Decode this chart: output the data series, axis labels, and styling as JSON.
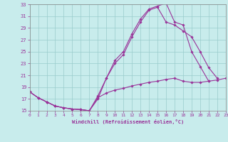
{
  "title": "Windchill (Refroidissement éolien,°C)",
  "bg_color": "#c8ecec",
  "line_color": "#993399",
  "grid_color": "#99cccc",
  "xlim": [
    0,
    23
  ],
  "ylim": [
    15,
    33
  ],
  "yticks": [
    15,
    17,
    19,
    21,
    23,
    25,
    27,
    29,
    31,
    33
  ],
  "xticks": [
    0,
    1,
    2,
    3,
    4,
    5,
    6,
    7,
    8,
    9,
    10,
    11,
    12,
    13,
    14,
    15,
    16,
    17,
    18,
    19,
    20,
    21,
    22,
    23
  ],
  "curve1_x": [
    0,
    1,
    2,
    3,
    4,
    5,
    6,
    7,
    8,
    9,
    10,
    11,
    12,
    13,
    14,
    15,
    16,
    17,
    18,
    19,
    20,
    21
  ],
  "curve1_y": [
    18.2,
    17.2,
    16.5,
    15.8,
    15.5,
    15.3,
    15.2,
    15.0,
    17.0,
    20.5,
    23.5,
    25.0,
    28.0,
    30.5,
    32.2,
    32.7,
    33.2,
    30.0,
    29.5,
    25.0,
    22.5,
    20.0
  ],
  "curve2_x": [
    0,
    1,
    2,
    3,
    4,
    5,
    6,
    7,
    8,
    9,
    10,
    11,
    12,
    13,
    14,
    15,
    16,
    17,
    18,
    19,
    20,
    21,
    22
  ],
  "curve2_y": [
    18.2,
    17.2,
    16.5,
    15.8,
    15.5,
    15.3,
    15.2,
    15.0,
    17.5,
    20.5,
    23.0,
    24.5,
    27.5,
    30.0,
    32.0,
    32.5,
    30.0,
    29.5,
    28.5,
    27.5,
    25.0,
    22.3,
    20.5
  ],
  "curve3_x": [
    0,
    1,
    2,
    3,
    4,
    5,
    6,
    7,
    8,
    9,
    10,
    11,
    12,
    13,
    14,
    15,
    16,
    17,
    18,
    19,
    20,
    21,
    22,
    23
  ],
  "curve3_y": [
    18.2,
    17.2,
    16.5,
    15.8,
    15.5,
    15.3,
    15.2,
    15.0,
    17.2,
    18.0,
    18.5,
    18.8,
    19.2,
    19.5,
    19.8,
    20.0,
    20.3,
    20.5,
    20.0,
    19.8,
    19.8,
    20.0,
    20.2,
    20.5
  ]
}
